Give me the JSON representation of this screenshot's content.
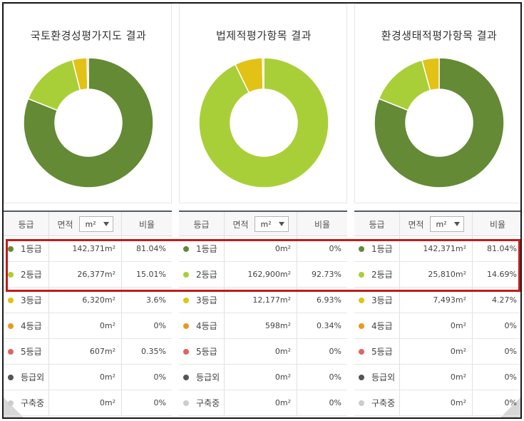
{
  "colors": {
    "grade1": "#648a35",
    "grade2": "#a9cf38",
    "grade3": "#e2c215",
    "grade4": "#e89a1e",
    "grade5": "#e06464",
    "outside": "#555555",
    "building": "#cccccc",
    "highlight": "#c41a1a",
    "header_rule": "#555b63"
  },
  "table_headers": {
    "grade": "등급",
    "area": "면적",
    "ratio": "비율",
    "unit": "m²"
  },
  "panels": [
    {
      "title": "국토환경성평가지도 결과",
      "slices": [
        {
          "grade": "1등급",
          "percent": 81.04,
          "color": "#648a35"
        },
        {
          "grade": "2등급",
          "percent": 15.01,
          "color": "#a9cf38"
        },
        {
          "grade": "3등급",
          "percent": 3.6,
          "color": "#e2c215"
        },
        {
          "grade": "5등급",
          "percent": 0.35,
          "color": "#e06464"
        }
      ],
      "rows": [
        {
          "label": "1등급",
          "area": "142,371m²",
          "ratio": "81.04%",
          "color": "#648a35"
        },
        {
          "label": "2등급",
          "area": "26,377m²",
          "ratio": "15.01%",
          "color": "#a9cf38"
        },
        {
          "label": "3등급",
          "area": "6,320m²",
          "ratio": "3.6%",
          "color": "#e2c215"
        },
        {
          "label": "4등급",
          "area": "0m²",
          "ratio": "0%",
          "color": "#e89a1e"
        },
        {
          "label": "5등급",
          "area": "607m²",
          "ratio": "0.35%",
          "color": "#e06464"
        },
        {
          "label": "등급외",
          "area": "0m²",
          "ratio": "0%",
          "color": "#555555"
        },
        {
          "label": "구축중",
          "area": "0m²",
          "ratio": "0%",
          "color": "#cccccc"
        }
      ]
    },
    {
      "title": "법제적평가항목 결과",
      "slices": [
        {
          "grade": "2등급",
          "percent": 92.73,
          "color": "#a9cf38"
        },
        {
          "grade": "3등급",
          "percent": 6.93,
          "color": "#e2c215"
        },
        {
          "grade": "4등급",
          "percent": 0.34,
          "color": "#e89a1e"
        }
      ],
      "rows": [
        {
          "label": "1등급",
          "area": "0m²",
          "ratio": "0%",
          "color": "#648a35"
        },
        {
          "label": "2등급",
          "area": "162,900m²",
          "ratio": "92.73%",
          "color": "#a9cf38"
        },
        {
          "label": "3등급",
          "area": "12,177m²",
          "ratio": "6.93%",
          "color": "#e2c215"
        },
        {
          "label": "4등급",
          "area": "598m²",
          "ratio": "0.34%",
          "color": "#e89a1e"
        },
        {
          "label": "5등급",
          "area": "0m²",
          "ratio": "0%",
          "color": "#e06464"
        },
        {
          "label": "등급외",
          "area": "0m²",
          "ratio": "0%",
          "color": "#555555"
        },
        {
          "label": "구축중",
          "area": "0m²",
          "ratio": "0%",
          "color": "#cccccc"
        }
      ]
    },
    {
      "title": "환경생태적평가항목 결과",
      "slices": [
        {
          "grade": "1등급",
          "percent": 81.04,
          "color": "#648a35"
        },
        {
          "grade": "2등급",
          "percent": 14.69,
          "color": "#a9cf38"
        },
        {
          "grade": "3등급",
          "percent": 4.27,
          "color": "#e2c215"
        }
      ],
      "rows": [
        {
          "label": "1등급",
          "area": "142,371m²",
          "ratio": "81.04%",
          "color": "#648a35"
        },
        {
          "label": "2등급",
          "area": "25,810m²",
          "ratio": "14.69%",
          "color": "#a9cf38"
        },
        {
          "label": "3등급",
          "area": "7,493m²",
          "ratio": "4.27%",
          "color": "#e2c215"
        },
        {
          "label": "4등급",
          "area": "0m²",
          "ratio": "0%",
          "color": "#e89a1e"
        },
        {
          "label": "5등급",
          "area": "0m²",
          "ratio": "0%",
          "color": "#e06464"
        },
        {
          "label": "등급외",
          "area": "0m²",
          "ratio": "0%",
          "color": "#555555"
        },
        {
          "label": "구축중",
          "area": "0m²",
          "ratio": "0%",
          "color": "#cccccc"
        }
      ]
    }
  ]
}
